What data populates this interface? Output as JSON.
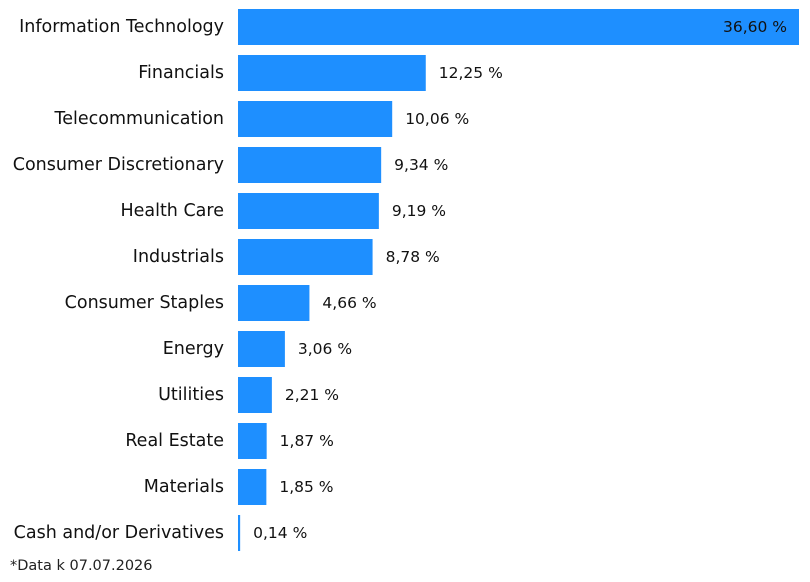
{
  "chart_data": {
    "type": "bar",
    "orientation": "horizontal",
    "title": "",
    "xlabel": "",
    "ylabel": "",
    "categories": [
      "Information Technology",
      "Financials",
      "Telecommunication",
      "Consumer Discretionary",
      "Health Care",
      "Industrials",
      "Consumer Staples",
      "Energy",
      "Utilities",
      "Real Estate",
      "Materials",
      "Cash and/or Derivatives"
    ],
    "values": [
      36.6,
      12.25,
      10.06,
      9.34,
      9.19,
      8.78,
      4.66,
      3.06,
      2.21,
      1.87,
      1.85,
      0.14
    ],
    "value_labels": [
      "36,60 %",
      "12,25 %",
      "10,06 %",
      "9,34 %",
      "9,19 %",
      "8,78 %",
      "4,66 %",
      "3,06 %",
      "2,21 %",
      "1,87 %",
      "1,85 %",
      "0,14 %"
    ],
    "xlim": [
      0,
      36.6
    ],
    "grid": false,
    "legend": "none",
    "bar_color": "#1E8FFF",
    "label_color": "#111111"
  },
  "footnote": "*Data k 07.07.2026"
}
